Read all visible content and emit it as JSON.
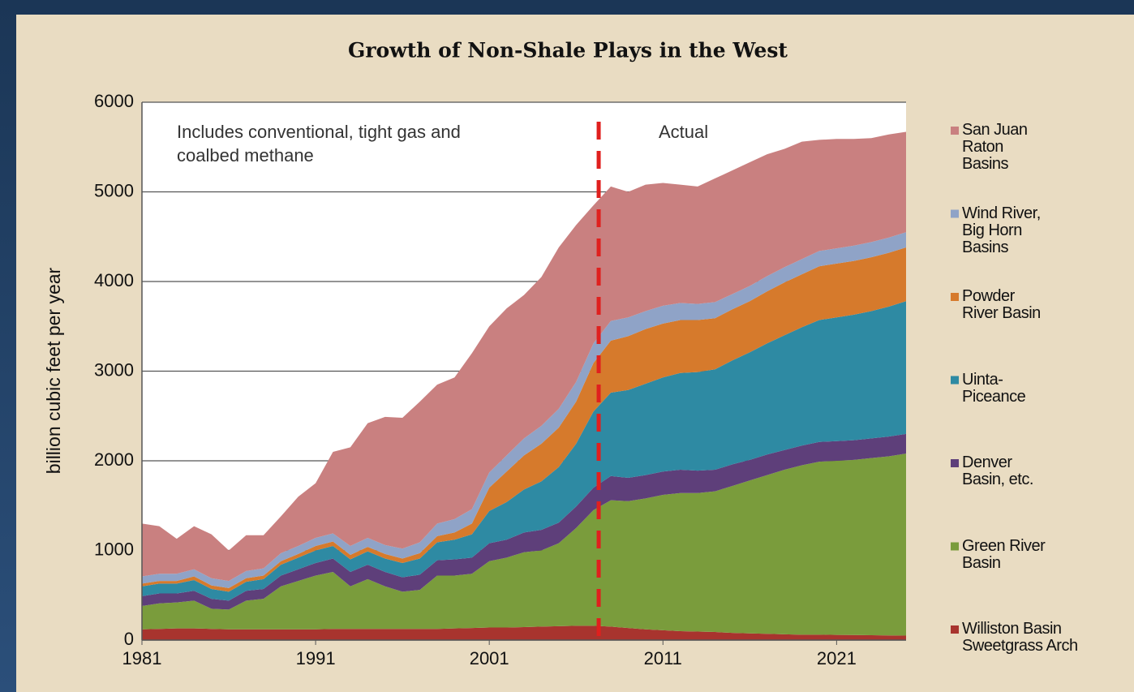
{
  "chart_data": {
    "type": "stacked_area",
    "title": "Growth of Non-Shale Plays in the West",
    "ylabel": "billion cubic  feet per year",
    "annotations": [
      "Includes conventional, tight gas and\ncoalbed methane",
      "Actual"
    ],
    "divider_x": 2007.3,
    "divider_color": "#e0201e",
    "x": [
      1981,
      1982,
      1983,
      1984,
      1985,
      1986,
      1987,
      1988,
      1989,
      1990,
      1991,
      1992,
      1993,
      1994,
      1995,
      1996,
      1997,
      1998,
      1999,
      2000,
      2001,
      2002,
      2003,
      2004,
      2005,
      2006,
      2007,
      2008,
      2009,
      2010,
      2011,
      2012,
      2013,
      2014,
      2015,
      2016,
      2017,
      2018,
      2019,
      2020,
      2021,
      2022,
      2023,
      2024,
      2025
    ],
    "xlim": [
      1981,
      2025
    ],
    "xticks": [
      1981,
      1991,
      2001,
      2011,
      2021
    ],
    "ylim": [
      0,
      6000
    ],
    "yticks": [
      0,
      1000,
      2000,
      3000,
      4000,
      5000,
      6000
    ],
    "grid": true,
    "series": [
      {
        "name": "Williston Basin\nSweetgrass Arch",
        "color": "#a8342e",
        "values": [
          120,
          125,
          130,
          130,
          125,
          120,
          120,
          120,
          120,
          120,
          120,
          125,
          125,
          125,
          125,
          125,
          125,
          125,
          130,
          135,
          140,
          140,
          145,
          150,
          155,
          160,
          160,
          150,
          135,
          120,
          110,
          100,
          95,
          90,
          80,
          75,
          70,
          65,
          60,
          60,
          58,
          56,
          54,
          52,
          50
        ]
      },
      {
        "name": "Green River\nBasin",
        "color": "#7a9c3c",
        "values": [
          260,
          285,
          290,
          310,
          225,
          220,
          320,
          340,
          480,
          540,
          600,
          635,
          475,
          555,
          475,
          415,
          435,
          595,
          590,
          605,
          740,
          780,
          835,
          850,
          925,
          1090,
          1290,
          1410,
          1415,
          1460,
          1510,
          1540,
          1545,
          1570,
          1640,
          1705,
          1770,
          1835,
          1890,
          1930,
          1942,
          1954,
          1976,
          1998,
          2030
        ]
      },
      {
        "name": "Denver\nBasin, etc.",
        "color": "#5e3f7a",
        "values": [
          110,
          110,
          100,
          110,
          110,
          100,
          110,
          110,
          120,
          130,
          140,
          150,
          160,
          160,
          160,
          160,
          170,
          170,
          180,
          180,
          200,
          200,
          220,
          230,
          230,
          240,
          250,
          270,
          260,
          260,
          260,
          260,
          250,
          240,
          240,
          230,
          230,
          220,
          220,
          220,
          220,
          220,
          220,
          220,
          220
        ]
      },
      {
        "name": "Uinta-\nPiceance",
        "color": "#2e8aa3",
        "values": [
          110,
          110,
          110,
          120,
          110,
          100,
          100,
          110,
          120,
          130,
          140,
          140,
          140,
          150,
          150,
          160,
          180,
          200,
          220,
          260,
          360,
          420,
          480,
          540,
          620,
          700,
          850,
          930,
          980,
          1020,
          1050,
          1080,
          1100,
          1120,
          1160,
          1200,
          1240,
          1280,
          1320,
          1360,
          1380,
          1400,
          1420,
          1450,
          1480
        ]
      },
      {
        "name": "Powder\nRiver Basin",
        "color": "#d67a2c",
        "values": [
          30,
          30,
          30,
          40,
          40,
          40,
          40,
          40,
          40,
          40,
          50,
          50,
          50,
          50,
          50,
          50,
          60,
          70,
          80,
          120,
          260,
          340,
          380,
          420,
          440,
          470,
          540,
          580,
          600,
          610,
          600,
          590,
          580,
          570,
          570,
          570,
          580,
          590,
          590,
          600,
          600,
          600,
          600,
          600,
          600
        ]
      },
      {
        "name": "Wind River,\nBig Horn\nBasins",
        "color": "#8fa3c7",
        "values": [
          80,
          80,
          80,
          80,
          80,
          80,
          80,
          80,
          90,
          90,
          90,
          90,
          100,
          100,
          100,
          110,
          120,
          140,
          150,
          160,
          170,
          180,
          190,
          200,
          210,
          220,
          220,
          220,
          210,
          200,
          200,
          190,
          180,
          180,
          170,
          170,
          170,
          170,
          170,
          170,
          170,
          170,
          170,
          170,
          170
        ]
      },
      {
        "name": "San Juan\nRaton\nBasins",
        "color": "#c98080",
        "values": [
          590,
          530,
          390,
          480,
          490,
          340,
          400,
          370,
          410,
          550,
          610,
          910,
          1100,
          1280,
          1430,
          1460,
          1570,
          1550,
          1580,
          1740,
          1630,
          1640,
          1600,
          1660,
          1800,
          1750,
          1540,
          1500,
          1400,
          1410,
          1370,
          1320,
          1310,
          1380,
          1380,
          1380,
          1360,
          1320,
          1310,
          1240,
          1220,
          1190,
          1160,
          1150,
          1120
        ]
      }
    ]
  }
}
